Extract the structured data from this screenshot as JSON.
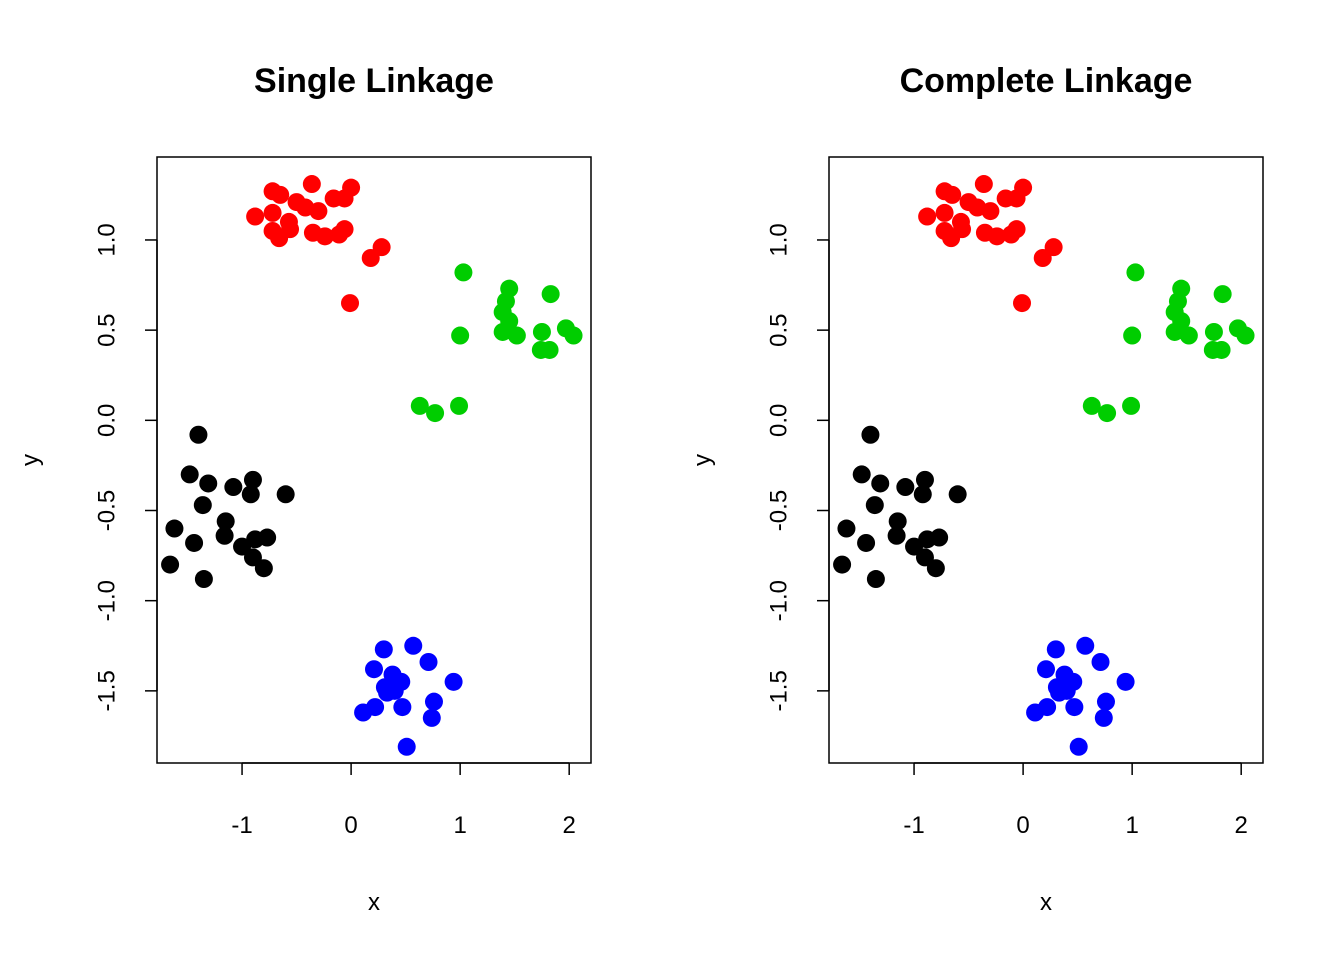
{
  "colors": {
    "cluster_1": "#000000",
    "cluster_2": "#ff0000",
    "cluster_3": "#00cd00",
    "cluster_4": "#0000ff"
  },
  "chart_data": [
    {
      "type": "scatter",
      "title": "Single Linkage",
      "xlabel": "x",
      "ylabel": "y",
      "xlim": [
        -1.78,
        2.2
      ],
      "ylim": [
        -1.9,
        1.46
      ],
      "xticks": [
        -1,
        0,
        1,
        2
      ],
      "xtick_labels": [
        "-1",
        "0",
        "1",
        "2"
      ],
      "yticks": [
        -1.5,
        -1.0,
        -0.5,
        0.0,
        0.5,
        1.0
      ],
      "ytick_labels": [
        "-1.5",
        "-1.0",
        "-0.5",
        "0.0",
        "0.5",
        "1.0"
      ],
      "grid": false,
      "legend": "none",
      "series": [
        {
          "color": "#000000",
          "points": [
            [
              -1.4,
              -0.08
            ],
            [
              -1.48,
              -0.3
            ],
            [
              -0.9,
              -0.33
            ],
            [
              -1.08,
              -0.37
            ],
            [
              -1.31,
              -0.35
            ],
            [
              -0.92,
              -0.41
            ],
            [
              -0.6,
              -0.41
            ],
            [
              -1.36,
              -0.47
            ],
            [
              -1.15,
              -0.56
            ],
            [
              -1.62,
              -0.6
            ],
            [
              -1.16,
              -0.64
            ],
            [
              -0.77,
              -0.65
            ],
            [
              -0.88,
              -0.66
            ],
            [
              -1.44,
              -0.68
            ],
            [
              -1.0,
              -0.7
            ],
            [
              -0.9,
              -0.76
            ],
            [
              -1.66,
              -0.8
            ],
            [
              -0.8,
              -0.82
            ],
            [
              -1.35,
              -0.88
            ]
          ]
        },
        {
          "color": "#ff0000",
          "points": [
            [
              -0.72,
              1.27
            ],
            [
              -0.36,
              1.31
            ],
            [
              0.0,
              1.29
            ],
            [
              -0.65,
              1.25
            ],
            [
              -0.5,
              1.21
            ],
            [
              -0.16,
              1.23
            ],
            [
              -0.06,
              1.23
            ],
            [
              -0.42,
              1.18
            ],
            [
              -0.3,
              1.16
            ],
            [
              -0.88,
              1.13
            ],
            [
              -0.72,
              1.15
            ],
            [
              -0.57,
              1.1
            ],
            [
              -0.56,
              1.06
            ],
            [
              -0.72,
              1.05
            ],
            [
              -0.06,
              1.06
            ],
            [
              -0.35,
              1.04
            ],
            [
              -0.24,
              1.02
            ],
            [
              -0.66,
              1.01
            ],
            [
              -0.11,
              1.03
            ],
            [
              0.28,
              0.96
            ],
            [
              0.18,
              0.9
            ],
            [
              -0.01,
              0.65
            ]
          ]
        },
        {
          "color": "#00cd00",
          "points": [
            [
              1.03,
              0.82
            ],
            [
              1.45,
              0.73
            ],
            [
              1.83,
              0.7
            ],
            [
              1.42,
              0.66
            ],
            [
              1.39,
              0.6
            ],
            [
              1.45,
              0.55
            ],
            [
              1.44,
              0.5
            ],
            [
              1.75,
              0.49
            ],
            [
              1.97,
              0.51
            ],
            [
              1.52,
              0.47
            ],
            [
              1.0,
              0.47
            ],
            [
              2.04,
              0.47
            ],
            [
              1.39,
              0.49
            ],
            [
              1.74,
              0.39
            ],
            [
              1.82,
              0.39
            ],
            [
              0.63,
              0.08
            ],
            [
              0.99,
              0.08
            ],
            [
              0.77,
              0.04
            ]
          ]
        },
        {
          "color": "#0000ff",
          "points": [
            [
              0.3,
              -1.27
            ],
            [
              0.57,
              -1.25
            ],
            [
              0.71,
              -1.34
            ],
            [
              0.21,
              -1.38
            ],
            [
              0.38,
              -1.41
            ],
            [
              0.46,
              -1.45
            ],
            [
              0.94,
              -1.45
            ],
            [
              0.31,
              -1.48
            ],
            [
              0.4,
              -1.5
            ],
            [
              0.33,
              -1.51
            ],
            [
              0.22,
              -1.59
            ],
            [
              0.47,
              -1.59
            ],
            [
              0.76,
              -1.56
            ],
            [
              0.11,
              -1.62
            ],
            [
              0.74,
              -1.65
            ],
            [
              0.51,
              -1.81
            ]
          ]
        }
      ]
    },
    {
      "type": "scatter",
      "title": "Complete Linkage",
      "xlabel": "x",
      "ylabel": "y",
      "xlim": [
        -1.78,
        2.2
      ],
      "ylim": [
        -1.9,
        1.46
      ],
      "xticks": [
        -1,
        0,
        1,
        2
      ],
      "xtick_labels": [
        "-1",
        "0",
        "1",
        "2"
      ],
      "yticks": [
        -1.5,
        -1.0,
        -0.5,
        0.0,
        0.5,
        1.0
      ],
      "ytick_labels": [
        "-1.5",
        "-1.0",
        "-0.5",
        "0.0",
        "0.5",
        "1.0"
      ],
      "grid": false,
      "legend": "none",
      "series": [
        {
          "color": "#000000",
          "points": [
            [
              -1.4,
              -0.08
            ],
            [
              -1.48,
              -0.3
            ],
            [
              -0.9,
              -0.33
            ],
            [
              -1.08,
              -0.37
            ],
            [
              -1.31,
              -0.35
            ],
            [
              -0.92,
              -0.41
            ],
            [
              -0.6,
              -0.41
            ],
            [
              -1.36,
              -0.47
            ],
            [
              -1.15,
              -0.56
            ],
            [
              -1.62,
              -0.6
            ],
            [
              -1.16,
              -0.64
            ],
            [
              -0.77,
              -0.65
            ],
            [
              -0.88,
              -0.66
            ],
            [
              -1.44,
              -0.68
            ],
            [
              -1.0,
              -0.7
            ],
            [
              -0.9,
              -0.76
            ],
            [
              -1.66,
              -0.8
            ],
            [
              -0.8,
              -0.82
            ],
            [
              -1.35,
              -0.88
            ]
          ]
        },
        {
          "color": "#ff0000",
          "points": [
            [
              -0.72,
              1.27
            ],
            [
              -0.36,
              1.31
            ],
            [
              0.0,
              1.29
            ],
            [
              -0.65,
              1.25
            ],
            [
              -0.5,
              1.21
            ],
            [
              -0.16,
              1.23
            ],
            [
              -0.06,
              1.23
            ],
            [
              -0.42,
              1.18
            ],
            [
              -0.3,
              1.16
            ],
            [
              -0.88,
              1.13
            ],
            [
              -0.72,
              1.15
            ],
            [
              -0.57,
              1.1
            ],
            [
              -0.56,
              1.06
            ],
            [
              -0.72,
              1.05
            ],
            [
              -0.06,
              1.06
            ],
            [
              -0.35,
              1.04
            ],
            [
              -0.24,
              1.02
            ],
            [
              -0.66,
              1.01
            ],
            [
              -0.11,
              1.03
            ],
            [
              0.28,
              0.96
            ],
            [
              0.18,
              0.9
            ],
            [
              -0.01,
              0.65
            ]
          ]
        },
        {
          "color": "#00cd00",
          "points": [
            [
              1.03,
              0.82
            ],
            [
              1.45,
              0.73
            ],
            [
              1.83,
              0.7
            ],
            [
              1.42,
              0.66
            ],
            [
              1.39,
              0.6
            ],
            [
              1.45,
              0.55
            ],
            [
              1.44,
              0.5
            ],
            [
              1.75,
              0.49
            ],
            [
              1.97,
              0.51
            ],
            [
              1.52,
              0.47
            ],
            [
              1.0,
              0.47
            ],
            [
              2.04,
              0.47
            ],
            [
              1.39,
              0.49
            ],
            [
              1.74,
              0.39
            ],
            [
              1.82,
              0.39
            ],
            [
              0.63,
              0.08
            ],
            [
              0.99,
              0.08
            ],
            [
              0.77,
              0.04
            ]
          ]
        },
        {
          "color": "#0000ff",
          "points": [
            [
              0.3,
              -1.27
            ],
            [
              0.57,
              -1.25
            ],
            [
              0.71,
              -1.34
            ],
            [
              0.21,
              -1.38
            ],
            [
              0.38,
              -1.41
            ],
            [
              0.46,
              -1.45
            ],
            [
              0.94,
              -1.45
            ],
            [
              0.31,
              -1.48
            ],
            [
              0.4,
              -1.5
            ],
            [
              0.33,
              -1.51
            ],
            [
              0.22,
              -1.59
            ],
            [
              0.47,
              -1.59
            ],
            [
              0.76,
              -1.56
            ],
            [
              0.11,
              -1.62
            ],
            [
              0.74,
              -1.65
            ],
            [
              0.51,
              -1.81
            ]
          ]
        }
      ]
    }
  ]
}
